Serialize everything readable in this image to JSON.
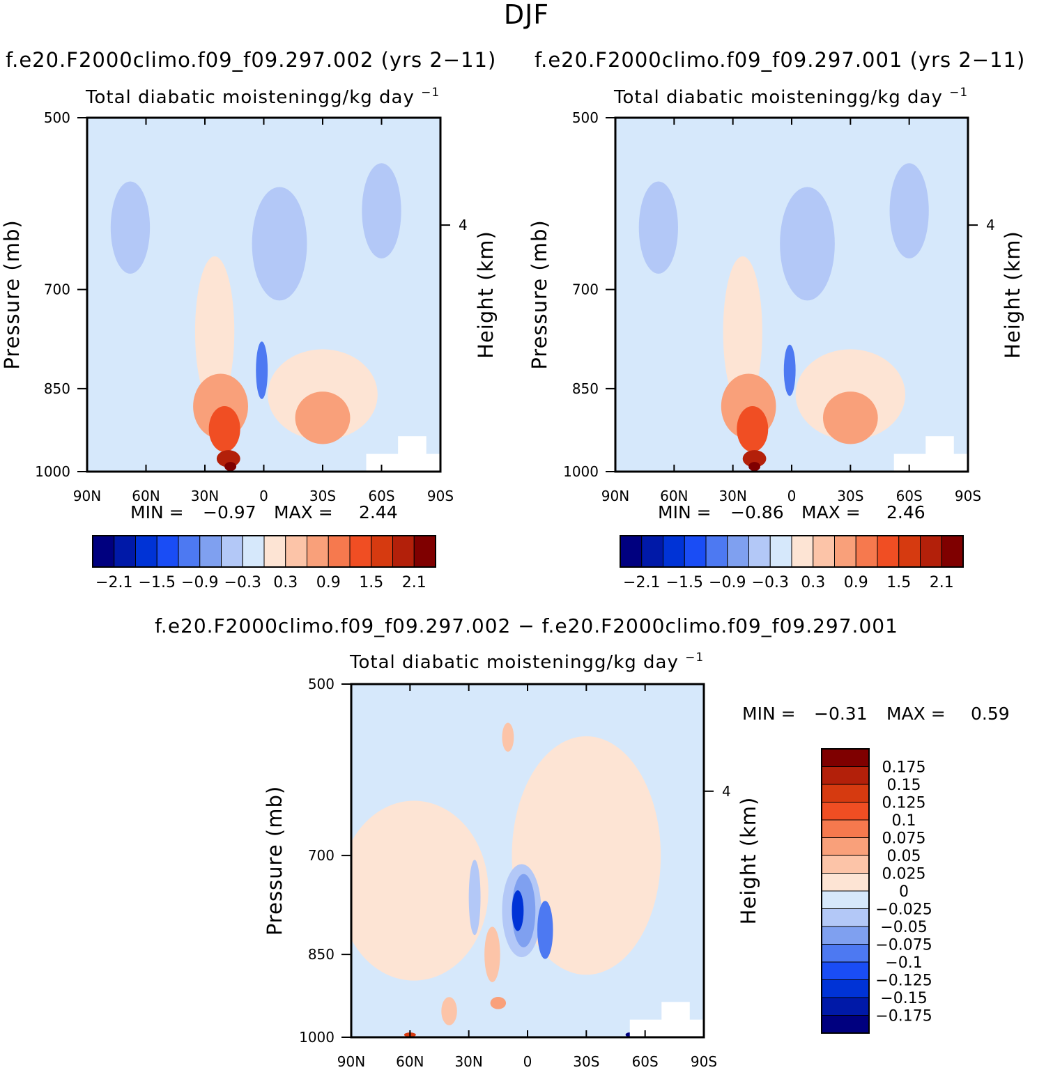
{
  "figure": {
    "season": "DJF",
    "case_a": "f.e20.F2000climo.f09_f09.297.002 (yrs 2−11)",
    "case_b": "f.e20.F2000climo.f09_f09.297.001 (yrs 2−11)",
    "diff_title": "f.e20.F2000climo.f09_f09.297.002 − f.e20.F2000climo.f09_f09.297.001"
  },
  "colors": {
    "frame": "#000000",
    "background_fill": "#d6e8fb",
    "abs_levels": [
      "#00007f",
      "#0019a8",
      "#0033d6",
      "#1a4df5",
      "#4d79f2",
      "#7fa0f0",
      "#b3c8f7",
      "#d6e8fb",
      "#fde4d4",
      "#fcc4a8",
      "#f9a07a",
      "#f6794e",
      "#f04e23",
      "#d63a10",
      "#b3200a",
      "#7f0000"
    ],
    "diff_levels": [
      "#00007f",
      "#0019a8",
      "#0033d6",
      "#1a4df5",
      "#4d79f2",
      "#7fa0f0",
      "#b3c8f7",
      "#d6e8fb",
      "#fde4d4",
      "#fcc4a8",
      "#f9a07a",
      "#f6794e",
      "#f04e23",
      "#d63a10",
      "#b3200a",
      "#7f0000"
    ]
  },
  "chart_data": [
    {
      "id": "panel-a",
      "type": "contour",
      "title": "f.e20.F2000climo.f09_f09.297.002 (yrs 2−11)",
      "subtitle_prefix": "Total diabatic moistening",
      "subtitle_units": "g/kg day",
      "units_exponent": "−1",
      "ylabel": "Pressure (mb)",
      "ylabel_right": "Height (km)",
      "x_ticks": [
        "90N",
        "60N",
        "30N",
        "0",
        "30S",
        "60S",
        "90S"
      ],
      "y_ticks": [
        "500",
        "700",
        "850",
        "1000"
      ],
      "y_tick_values": [
        500,
        700,
        850,
        1000
      ],
      "right_ticks": [
        "4"
      ],
      "right_tick_pressures": [
        617
      ],
      "xlim": [
        90,
        -90
      ],
      "ylim": [
        1000,
        500
      ],
      "min_label": "MIN =",
      "min_value": "−0.97",
      "max_label": "MAX =",
      "max_value": "2.44",
      "colorbar_labels": [
        "−2.1",
        "−1.5",
        "−0.9",
        "−0.3",
        "0.3",
        "0.9",
        "1.5",
        "2.1"
      ],
      "features": [
        {
          "lat": -8,
          "p": 640,
          "lat_w": 14,
          "p_w": 140,
          "level": 6
        },
        {
          "lat": 68,
          "p": 620,
          "lat_w": 10,
          "p_w": 110,
          "level": 6
        },
        {
          "lat": -60,
          "p": 600,
          "lat_w": 10,
          "p_w": 110,
          "level": 6
        },
        {
          "lat": 1,
          "p": 820,
          "lat_w": 3,
          "p_w": 90,
          "level": 4
        },
        {
          "lat": 25,
          "p": 760,
          "lat_w": 10,
          "p_w": 220,
          "level": 8
        },
        {
          "lat": -30,
          "p": 860,
          "lat_w": 28,
          "p_w": 150,
          "level": 8
        },
        {
          "lat": 22,
          "p": 880,
          "lat_w": 14,
          "p_w": 110,
          "level": 10
        },
        {
          "lat": -30,
          "p": 900,
          "lat_w": 14,
          "p_w": 90,
          "level": 10
        },
        {
          "lat": 20,
          "p": 920,
          "lat_w": 8,
          "p_w": 80,
          "level": 12
        },
        {
          "lat": 18,
          "p": 975,
          "lat_w": 6,
          "p_w": 30,
          "level": 14
        },
        {
          "lat": 17,
          "p": 990,
          "lat_w": 3,
          "p_w": 15,
          "level": 15
        }
      ]
    },
    {
      "id": "panel-b",
      "type": "contour",
      "title": "f.e20.F2000climo.f09_f09.297.001 (yrs 2−11)",
      "subtitle_prefix": "Total diabatic moistening",
      "subtitle_units": "g/kg day",
      "units_exponent": "−1",
      "ylabel": "Pressure (mb)",
      "ylabel_right": "Height (km)",
      "x_ticks": [
        "90N",
        "60N",
        "30N",
        "0",
        "30S",
        "60S",
        "90S"
      ],
      "y_ticks": [
        "500",
        "700",
        "850",
        "1000"
      ],
      "y_tick_values": [
        500,
        700,
        850,
        1000
      ],
      "right_ticks": [
        "4"
      ],
      "right_tick_pressures": [
        617
      ],
      "xlim": [
        90,
        -90
      ],
      "ylim": [
        1000,
        500
      ],
      "min_label": "MIN =",
      "min_value": "−0.86",
      "max_label": "MAX =",
      "max_value": "2.46",
      "colorbar_labels": [
        "−2.1",
        "−1.5",
        "−0.9",
        "−0.3",
        "0.3",
        "0.9",
        "1.5",
        "2.1"
      ],
      "features": [
        {
          "lat": -8,
          "p": 640,
          "lat_w": 14,
          "p_w": 140,
          "level": 6
        },
        {
          "lat": 68,
          "p": 620,
          "lat_w": 10,
          "p_w": 110,
          "level": 6
        },
        {
          "lat": -60,
          "p": 600,
          "lat_w": 10,
          "p_w": 110,
          "level": 6
        },
        {
          "lat": 1,
          "p": 820,
          "lat_w": 3,
          "p_w": 80,
          "level": 4
        },
        {
          "lat": 25,
          "p": 760,
          "lat_w": 10,
          "p_w": 220,
          "level": 8
        },
        {
          "lat": -30,
          "p": 860,
          "lat_w": 28,
          "p_w": 150,
          "level": 8
        },
        {
          "lat": 22,
          "p": 880,
          "lat_w": 14,
          "p_w": 110,
          "level": 10
        },
        {
          "lat": -30,
          "p": 900,
          "lat_w": 14,
          "p_w": 90,
          "level": 10
        },
        {
          "lat": 20,
          "p": 920,
          "lat_w": 8,
          "p_w": 80,
          "level": 12
        },
        {
          "lat": 19,
          "p": 975,
          "lat_w": 6,
          "p_w": 30,
          "level": 14
        },
        {
          "lat": 19,
          "p": 990,
          "lat_w": 3,
          "p_w": 15,
          "level": 15
        }
      ]
    },
    {
      "id": "panel-diff",
      "type": "contour",
      "title": "f.e20.F2000climo.f09_f09.297.002 − f.e20.F2000climo.f09_f09.297.001",
      "subtitle_prefix": "Total diabatic moistening",
      "subtitle_units": "g/kg day",
      "units_exponent": "−1",
      "ylabel": "Pressure (mb)",
      "ylabel_right": "Height (km)",
      "x_ticks": [
        "90N",
        "60N",
        "30N",
        "0",
        "30S",
        "60S",
        "90S"
      ],
      "y_ticks": [
        "500",
        "700",
        "850",
        "1000"
      ],
      "y_tick_values": [
        500,
        700,
        850,
        1000
      ],
      "right_ticks": [
        "4"
      ],
      "right_tick_pressures": [
        617
      ],
      "xlim": [
        90,
        -90
      ],
      "ylim": [
        1000,
        500
      ],
      "min_label": "MIN =",
      "min_value": "−0.31",
      "max_label": "MAX =",
      "max_value": "0.59",
      "colorbar_labels": [
        "0.175",
        "0.15",
        "0.125",
        "0.1",
        "0.075",
        "0.05",
        "0.025",
        "0",
        "−0.025",
        "−0.05",
        "−0.075",
        "−0.1",
        "−0.125",
        "−0.15",
        "−0.175"
      ],
      "features": [
        {
          "lat": 58,
          "p": 750,
          "lat_w": 38,
          "p_w": 260,
          "level": 8
        },
        {
          "lat": -30,
          "p": 700,
          "lat_w": 38,
          "p_w": 320,
          "level": 8
        },
        {
          "lat": 3,
          "p": 780,
          "lat_w": 10,
          "p_w": 140,
          "level": 6
        },
        {
          "lat": 27,
          "p": 760,
          "lat_w": 3,
          "p_w": 110,
          "level": 6
        },
        {
          "lat": 18,
          "p": 850,
          "lat_w": 4,
          "p_w": 90,
          "level": 9
        },
        {
          "lat": 40,
          "p": 950,
          "lat_w": 4,
          "p_w": 50,
          "level": 9
        },
        {
          "lat": 2,
          "p": 780,
          "lat_w": 6,
          "p_w": 110,
          "level": 5
        },
        {
          "lat": -9,
          "p": 810,
          "lat_w": 4,
          "p_w": 90,
          "level": 4
        },
        {
          "lat": 5,
          "p": 780,
          "lat_w": 3,
          "p_w": 60,
          "level": 2
        },
        {
          "lat": 15,
          "p": 935,
          "lat_w": 4,
          "p_w": 20,
          "level": 10
        },
        {
          "lat": 10,
          "p": 555,
          "lat_w": 3,
          "p_w": 30,
          "level": 9
        },
        {
          "lat": 60,
          "p": 995,
          "lat_w": 3,
          "p_w": 6,
          "level": 13
        },
        {
          "lat": -52,
          "p": 995,
          "lat_w": 2,
          "p_w": 6,
          "level": 0
        }
      ]
    }
  ]
}
